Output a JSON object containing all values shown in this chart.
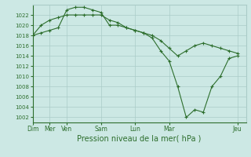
{
  "background_color": "#cce8e4",
  "grid_color": "#aaccc8",
  "line_color": "#2d6e2d",
  "xlabel": "Pression niveau de la mer( hPa )",
  "xlabel_fontsize": 7.0,
  "ylim": [
    1001,
    1024
  ],
  "yticks": [
    1002,
    1004,
    1006,
    1008,
    1010,
    1012,
    1014,
    1016,
    1018,
    1020,
    1022
  ],
  "x_positions": [
    0,
    1,
    2,
    4,
    6,
    8,
    12
  ],
  "x_labels": [
    "Dim",
    "Mer",
    "Ven",
    "Sam",
    "Lun",
    "Mar",
    "Jeu"
  ],
  "xlim": [
    0,
    12.5
  ],
  "series1_x": [
    0,
    0.5,
    1,
    1.5,
    2,
    2.5,
    3,
    3.5,
    4,
    4.5,
    5,
    5.5,
    6,
    6.5,
    7,
    7.5,
    8,
    8.5,
    9,
    9.5,
    10,
    10.5,
    11,
    11.5,
    12
  ],
  "series1_y": [
    1018,
    1018.5,
    1019,
    1019.5,
    1023,
    1023.5,
    1023.5,
    1023,
    1022.5,
    1020,
    1020,
    1019.5,
    1019,
    1018.5,
    1017.5,
    1015,
    1013,
    1008,
    1002,
    1003.5,
    1003,
    1008,
    1010,
    1013.5,
    1014
  ],
  "series2_x": [
    0,
    0.5,
    1,
    1.5,
    2,
    2.5,
    3,
    3.5,
    4,
    4.5,
    5,
    5.5,
    6,
    6.5,
    7,
    7.5,
    8,
    8.5,
    9,
    9.5,
    10,
    10.5,
    11,
    11.5,
    12
  ],
  "series2_y": [
    1018,
    1020,
    1021,
    1021.5,
    1022,
    1022,
    1022,
    1022,
    1022,
    1021,
    1020.5,
    1019.5,
    1019,
    1018.5,
    1018,
    1017,
    1015.5,
    1014,
    1015,
    1016,
    1016.5,
    1016,
    1015.5,
    1015,
    1014.5
  ]
}
